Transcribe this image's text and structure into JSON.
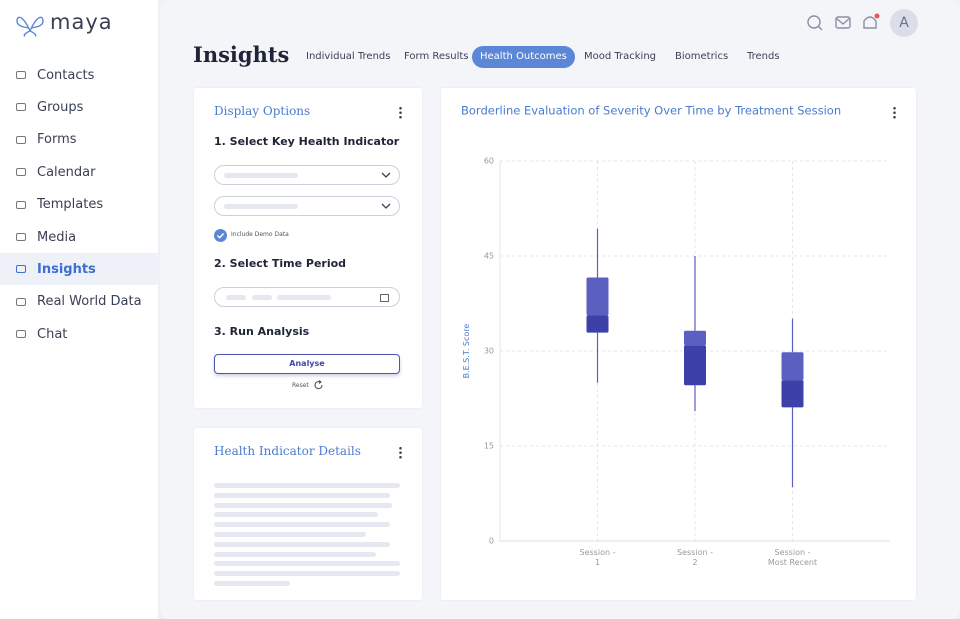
{
  "brand": "maya",
  "nav": [
    "Contacts",
    "Groups",
    "Forms",
    "Calendar",
    "Templates",
    "Media",
    "Insights",
    "Real World Data",
    "Chat"
  ],
  "header": {
    "title": "Insights",
    "tabs": [
      "Individual Trends",
      "Form Results",
      "Health Outcomes",
      "Mood Tracking",
      "Biometrics",
      "Trends"
    ],
    "avatar": "A"
  },
  "display_options": {
    "title": "Display Options",
    "step1": "1. Select Key Health Indicator",
    "checkbox": "Include Demo Data",
    "step2": "2. Select Time Period",
    "step3": "3. Run Analysis",
    "analyse": "Analyse",
    "reset": "Reset"
  },
  "details": {
    "title": "Health Indicator Details"
  },
  "chart_data": {
    "type": "box",
    "title": "Borderline Evaluation of Severity Over Time by Treatment Session",
    "y_label": "B.E.S.T. Score",
    "categories": [
      "Session - 1",
      "Session - 2",
      "Session - Most Recent"
    ],
    "whisker_low": [
      25.0,
      20.5,
      8.5
    ],
    "q1": [
      32.9,
      24.6,
      21.1
    ],
    "median": [
      35.6,
      30.9,
      25.4
    ],
    "q3": [
      41.6,
      33.2,
      29.8
    ],
    "whisker_high": [
      49.3,
      45.0,
      35.1
    ],
    "color": "#5a5fc0",
    "lower_color": "#3c40a8",
    "ylim": [
      0,
      60
    ],
    "yticks": [
      0,
      15,
      30,
      45,
      60
    ],
    "grid": true
  }
}
